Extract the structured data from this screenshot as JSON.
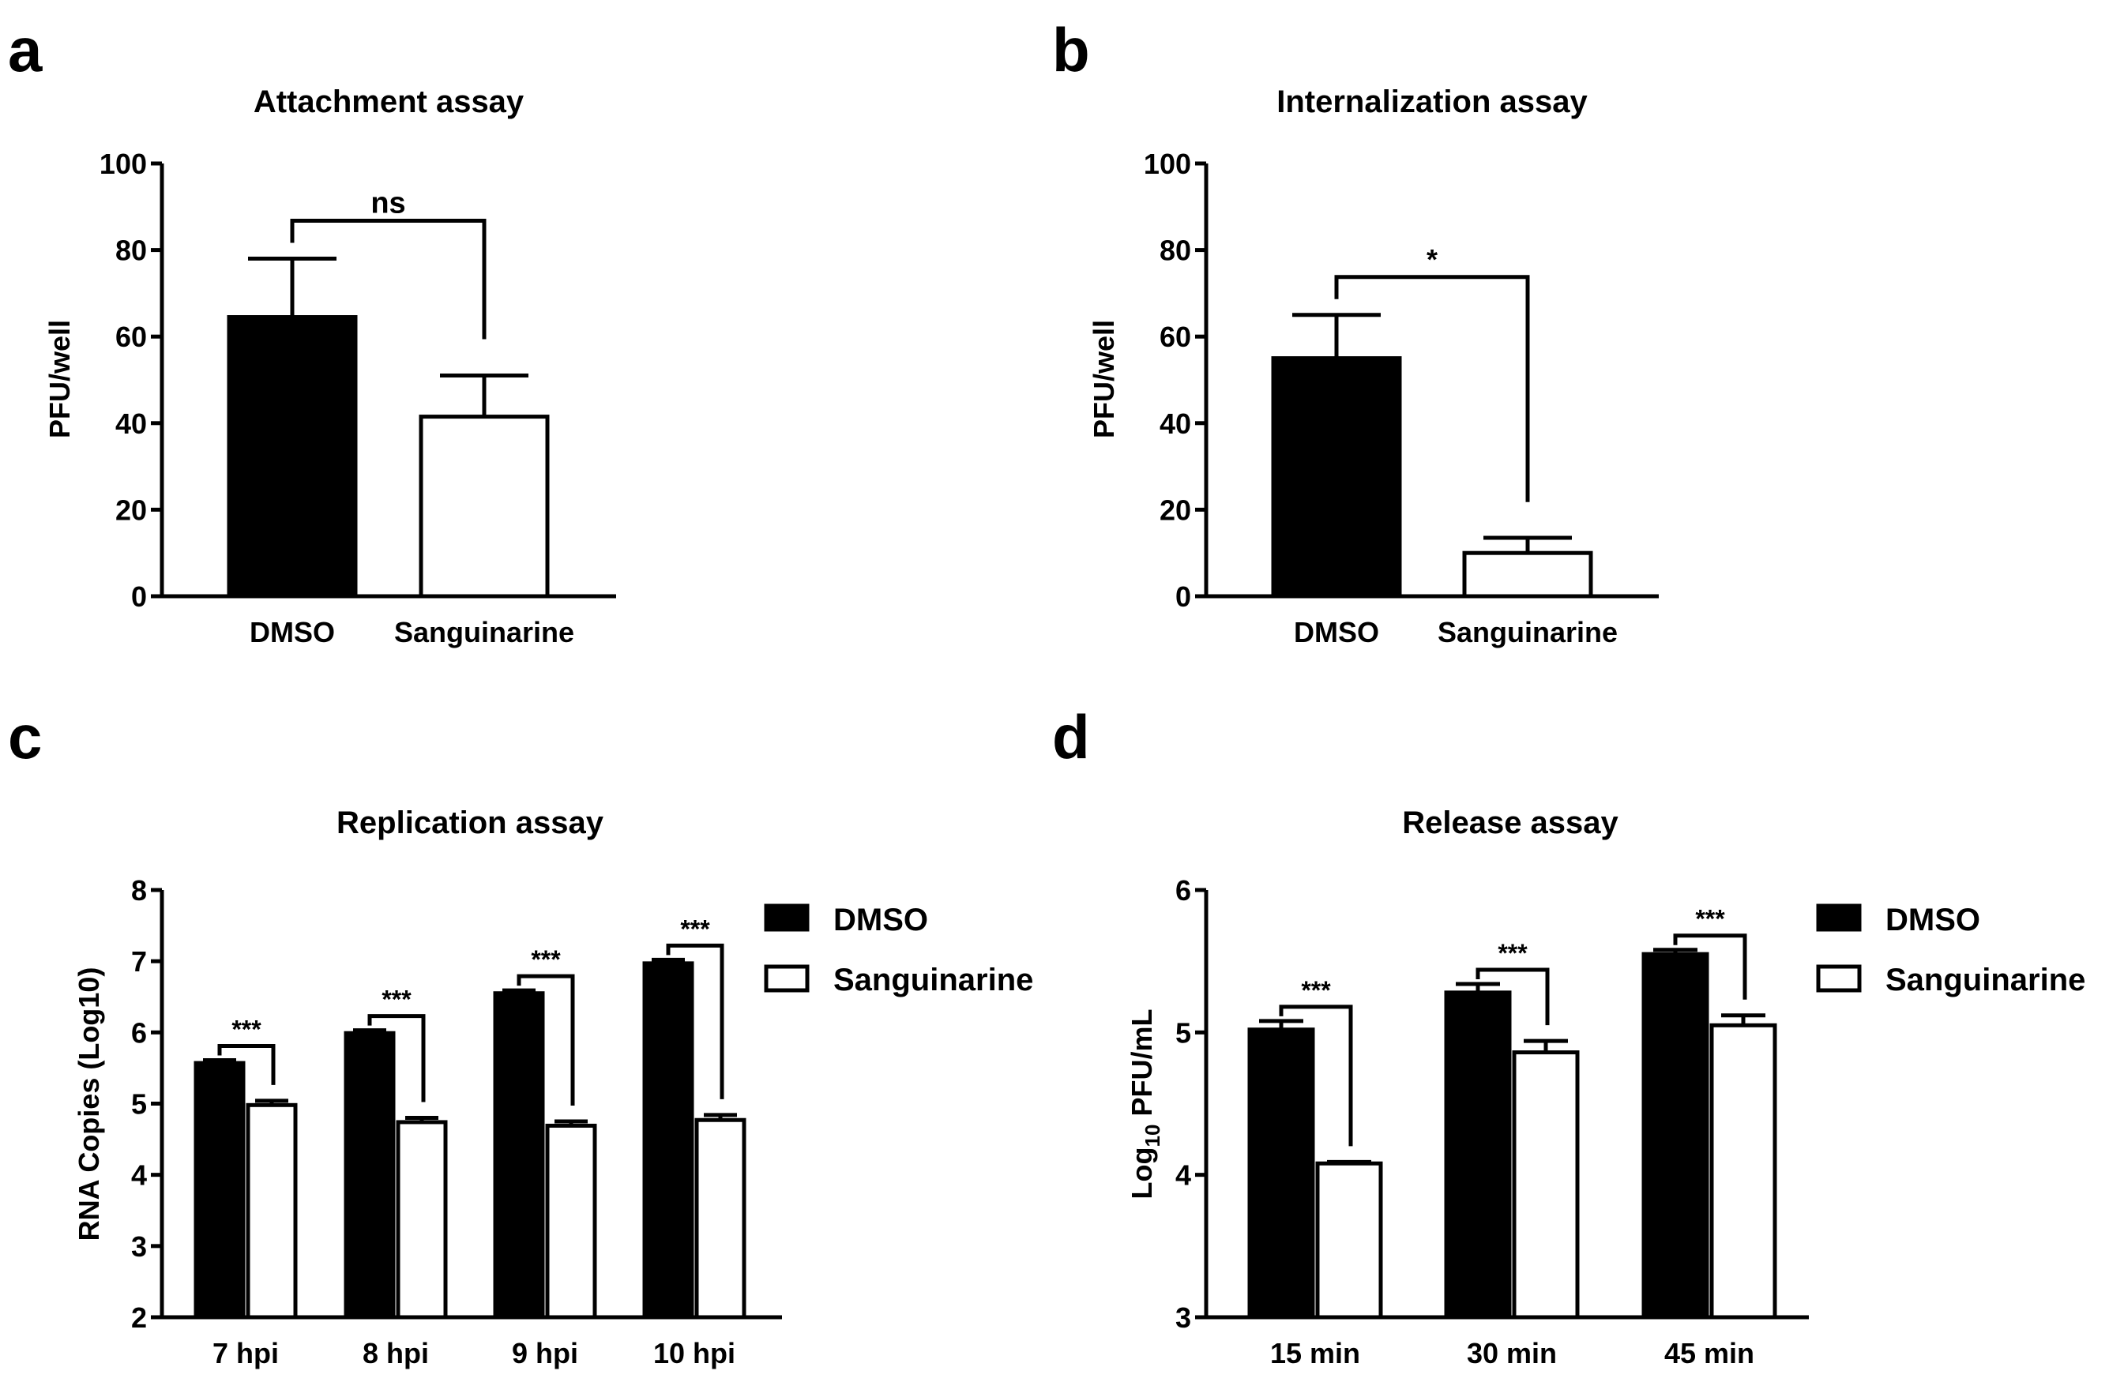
{
  "colors": {
    "dmso": "#000000",
    "sanguinarine": "#ffffff",
    "stroke": "#000000"
  },
  "chart_data": [
    {
      "panel": "a",
      "type": "bar",
      "title": "Attachment assay",
      "ylabel": "PFU/well",
      "ylim": [
        0,
        100
      ],
      "yticks": [
        "0",
        "20",
        "40",
        "60",
        "80",
        "100"
      ],
      "categories": [
        "DMSO",
        "Sanguinarine"
      ],
      "values": [
        64.5,
        41.5
      ],
      "errors": [
        13.5,
        9.5
      ],
      "significance": [
        {
          "label": "ns",
          "between": [
            "DMSO",
            "Sanguinarine"
          ]
        }
      ]
    },
    {
      "panel": "b",
      "type": "bar",
      "title": "Internalization assay",
      "ylabel": "PFU/well",
      "ylim": [
        0,
        100
      ],
      "yticks": [
        "0",
        "20",
        "40",
        "60",
        "80",
        "100"
      ],
      "categories": [
        "DMSO",
        "Sanguinarine"
      ],
      "values": [
        55,
        10
      ],
      "errors": [
        10,
        3.5
      ],
      "significance": [
        {
          "label": "*",
          "between": [
            "DMSO",
            "Sanguinarine"
          ]
        }
      ]
    },
    {
      "panel": "c",
      "type": "bar",
      "title": "Replication assay",
      "ylabel": "RNA Copies (Log10)",
      "ylim": [
        2,
        8
      ],
      "yticks": [
        "2",
        "3",
        "4",
        "5",
        "6",
        "7",
        "8"
      ],
      "categories": [
        "7 hpi",
        "8 hpi",
        "9 hpi",
        "10 hpi"
      ],
      "series": [
        {
          "name": "DMSO",
          "values": [
            5.57,
            5.99,
            6.55,
            6.97
          ],
          "errors": [
            0.04,
            0.04,
            0.04,
            0.05
          ]
        },
        {
          "name": "Sanguinarine",
          "values": [
            4.98,
            4.74,
            4.69,
            4.77
          ],
          "errors": [
            0.06,
            0.06,
            0.06,
            0.07
          ]
        }
      ],
      "significance": [
        "***",
        "***",
        "***",
        "***"
      ]
    },
    {
      "panel": "d",
      "type": "bar",
      "title": "Release assay",
      "ylabel_main": "Log",
      "ylabel_sub": "10",
      "ylabel_unit": " PFU/mL",
      "ylim": [
        3,
        6
      ],
      "yticks": [
        "3",
        "4",
        "5",
        "6"
      ],
      "categories": [
        "15 min",
        "30 min",
        "45 min"
      ],
      "series": [
        {
          "name": "DMSO",
          "values": [
            5.02,
            5.28,
            5.55
          ],
          "errors": [
            0.06,
            0.06,
            0.03
          ]
        },
        {
          "name": "Sanguinarine",
          "values": [
            4.08,
            4.86,
            5.05
          ],
          "errors": [
            0.01,
            0.08,
            0.07
          ]
        }
      ],
      "significance": [
        "***",
        "***",
        "***"
      ]
    }
  ],
  "panel_labels": [
    "a",
    "b",
    "c",
    "d"
  ],
  "legend": {
    "dmso": "DMSO",
    "sanguinarine": "Sanguinarine"
  }
}
